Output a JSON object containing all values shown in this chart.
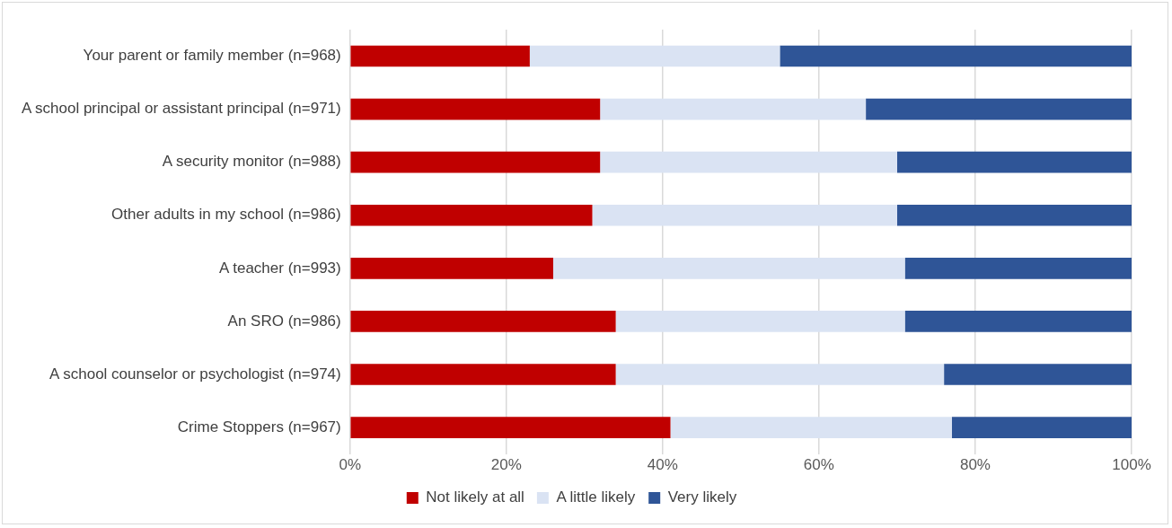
{
  "chart_data": {
    "type": "bar",
    "orientation": "horizontal",
    "stacked": true,
    "categories": [
      "Your parent or family member (n=968)",
      "A school principal or assistant principal (n=971)",
      "A security monitor (n=988)",
      "Other adults in my school (n=986)",
      "A teacher (n=993)",
      "An SRO (n=986)",
      "A school counselor or psychologist (n=974)",
      "Crime Stoppers (n=967)"
    ],
    "series": [
      {
        "name": "Not likely at all",
        "color": "#c00000",
        "values": [
          23,
          32,
          32,
          31,
          26,
          34,
          34,
          41
        ]
      },
      {
        "name": "A little likely",
        "color": "#dae3f3",
        "values": [
          32,
          34,
          38,
          39,
          45,
          37,
          42,
          36
        ]
      },
      {
        "name": "Very likely",
        "color": "#2f5597",
        "values": [
          45,
          34,
          30,
          30,
          29,
          29,
          24,
          23
        ]
      }
    ],
    "xlim": [
      0,
      100
    ],
    "xticks": [
      {
        "value": 0,
        "label": "0%"
      },
      {
        "value": 20,
        "label": "20%"
      },
      {
        "value": 40,
        "label": "40%"
      },
      {
        "value": 60,
        "label": "60%"
      },
      {
        "value": 80,
        "label": "80%"
      },
      {
        "value": 100,
        "label": "100%"
      }
    ],
    "grid": "x",
    "legend": "bottom"
  }
}
